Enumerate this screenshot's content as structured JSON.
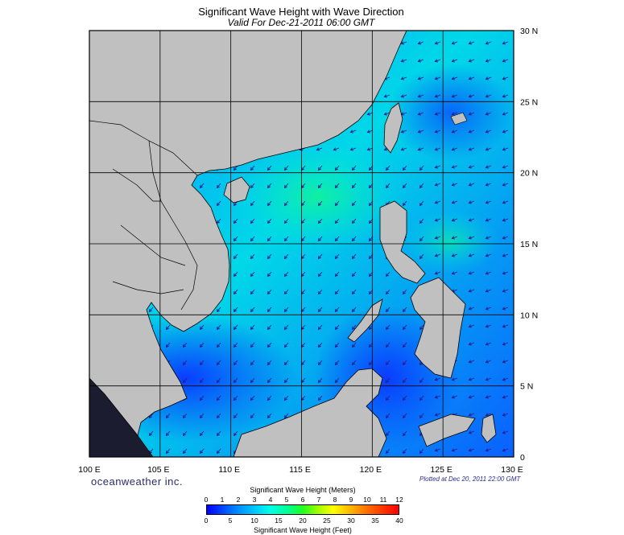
{
  "header": {
    "title": "Significant Wave Height with Wave Direction",
    "subtitle": "Valid For Dec-21-2011 06:00 GMT"
  },
  "map": {
    "lon_range": [
      100,
      130
    ],
    "lat_range": [
      0,
      30
    ],
    "lon_ticks": [
      {
        "v": 100,
        "label": "100 E"
      },
      {
        "v": 105,
        "label": "105 E"
      },
      {
        "v": 110,
        "label": "110 E"
      },
      {
        "v": 115,
        "label": "115 E"
      },
      {
        "v": 120,
        "label": "120 E"
      },
      {
        "v": 125,
        "label": "125 E"
      },
      {
        "v": 130,
        "label": "130 E"
      }
    ],
    "lat_ticks": [
      {
        "v": 0,
        "label": "0"
      },
      {
        "v": 5,
        "label": "5 N"
      },
      {
        "v": 10,
        "label": "10 N"
      },
      {
        "v": 15,
        "label": "15 N"
      },
      {
        "v": 20,
        "label": "20 N"
      },
      {
        "v": 25,
        "label": "25 N"
      },
      {
        "v": 30,
        "label": "30 N"
      }
    ],
    "colors": {
      "land": "#c0c0c0",
      "ocean_low": "#0a3cff",
      "ocean_mid": "#0a8cff",
      "ocean_high": "#00e6e6",
      "ocean_peak": "#00f0a0",
      "arrow": "#2a1a8c",
      "grid": "#000000"
    },
    "wave_direction": "from northeast (arrows point southwest)"
  },
  "footer": {
    "brand": "oceanweather inc.",
    "plotted": "Plotted at Dec 20, 2011 22:00 GMT"
  },
  "legend": {
    "meters_title": "Significant Wave Height (Meters)",
    "feet_title": "Significant Wave Height (Feet)",
    "meters_ticks": [
      "0",
      "1",
      "2",
      "3",
      "4",
      "5",
      "6",
      "7",
      "8",
      "9",
      "10",
      "11",
      "12"
    ],
    "feet_ticks": [
      "0",
      "5",
      "10",
      "15",
      "20",
      "25",
      "30",
      "35",
      "40"
    ],
    "meters_max": 12,
    "feet_max": 40
  }
}
